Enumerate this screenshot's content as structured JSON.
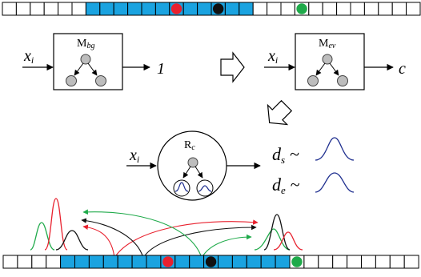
{
  "colors": {
    "cell_filled": "#1aa3e0",
    "cell_empty": "#ffffff",
    "outline": "#000000",
    "red": "#e8212e",
    "black": "#111111",
    "green": "#1faa4a",
    "blue_curve": "#1f2f8f",
    "node_gray": "#bdbdbd"
  },
  "top_strip": {
    "total_cells": 30,
    "filled_cells": [
      6,
      17
    ],
    "markers": [
      {
        "cell": 12,
        "color": "red"
      },
      {
        "cell": 15,
        "color": "black"
      },
      {
        "cell": 21,
        "color": "green"
      }
    ]
  },
  "bottom_strip": {
    "total_cells": 29,
    "filled_cells": [
      4,
      19
    ],
    "markers": [
      {
        "cell": 11,
        "color": "red"
      },
      {
        "cell": 14,
        "color": "black"
      },
      {
        "cell": 20,
        "color": "green"
      }
    ]
  },
  "model_bg": {
    "input": {
      "base": "x",
      "sub": "i"
    },
    "label": {
      "base": "M",
      "sub": "bg"
    },
    "output": "1"
  },
  "model_ev": {
    "input": {
      "base": "x",
      "sub": "i"
    },
    "label": {
      "base": "M",
      "sub": "ev"
    },
    "output": "c"
  },
  "regressor": {
    "input": {
      "base": "x",
      "sub": "i"
    },
    "label": {
      "base": "R",
      "sub": "c"
    },
    "outputs": [
      {
        "base": "d",
        "sub": "s",
        "tilde": "~"
      },
      {
        "base": "d",
        "sub": "e",
        "tilde": "~"
      }
    ]
  },
  "icons": [
    "hollow-right-arrow-icon",
    "hollow-down-left-arrow-icon",
    "tree-graph-icon",
    "gaussian-curve-icon"
  ]
}
